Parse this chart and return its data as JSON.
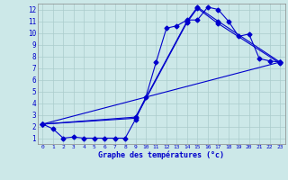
{
  "bg_color": "#cce8e8",
  "grid_color": "#aacccc",
  "line_color": "#0000cc",
  "xlabel": "Graphe des températures (°c)",
  "xlim": [
    -0.5,
    23.5
  ],
  "ylim": [
    0.5,
    12.5
  ],
  "x_ticks": [
    0,
    1,
    2,
    3,
    4,
    5,
    6,
    7,
    8,
    9,
    10,
    11,
    12,
    13,
    14,
    15,
    16,
    17,
    18,
    19,
    20,
    21,
    22,
    23
  ],
  "y_ticks": [
    1,
    2,
    3,
    4,
    5,
    6,
    7,
    8,
    9,
    10,
    11,
    12
  ],
  "series1_x": [
    0,
    1,
    2,
    3,
    4,
    5,
    6,
    7,
    8,
    9,
    10,
    11,
    12,
    13,
    14,
    15,
    16,
    17,
    18,
    19,
    20,
    21,
    22,
    23
  ],
  "series1_y": [
    2.2,
    1.8,
    1.0,
    1.1,
    1.0,
    1.0,
    1.0,
    1.0,
    1.0,
    2.6,
    4.5,
    7.5,
    10.4,
    10.6,
    11.1,
    11.1,
    12.2,
    12.0,
    11.0,
    9.7,
    9.9,
    7.8,
    7.6,
    7.5
  ],
  "series2_x": [
    0,
    23
  ],
  "series2_y": [
    2.2,
    7.5
  ],
  "series3_x": [
    0,
    9,
    14,
    15,
    17,
    23
  ],
  "series3_y": [
    2.2,
    2.8,
    11.0,
    12.2,
    11.0,
    7.5
  ],
  "series4_x": [
    0,
    9,
    14,
    15,
    17,
    23
  ],
  "series4_y": [
    2.2,
    2.7,
    10.9,
    12.1,
    10.8,
    7.4
  ]
}
